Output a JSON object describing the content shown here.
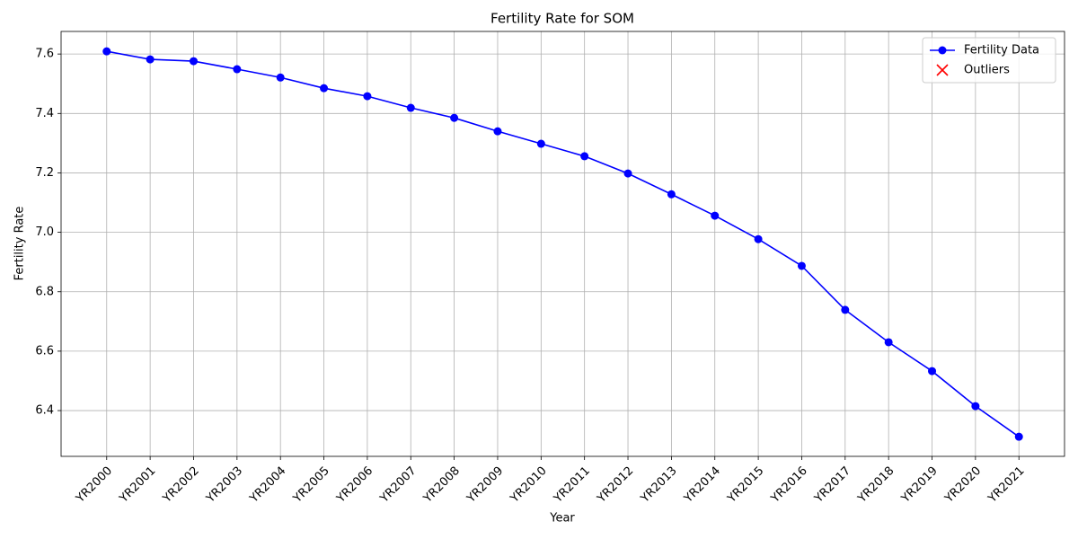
{
  "chart_data": {
    "type": "line",
    "title": "Fertility Rate for SOM",
    "x_label": "Year",
    "y_label": "Fertility Rate",
    "categories": [
      "YR2000",
      "YR2001",
      "YR2002",
      "YR2003",
      "YR2004",
      "YR2005",
      "YR2006",
      "YR2007",
      "YR2008",
      "YR2009",
      "YR2010",
      "YR2011",
      "YR2012",
      "YR2013",
      "YR2014",
      "YR2015",
      "YR2016",
      "YR2017",
      "YR2018",
      "YR2019",
      "YR2020",
      "YR2021"
    ],
    "series": [
      {
        "name": "Fertility Data",
        "color": "#0000ff",
        "marker": "o",
        "values": [
          7.609,
          7.582,
          7.576,
          7.549,
          7.521,
          7.485,
          7.458,
          7.419,
          7.385,
          7.34,
          7.298,
          7.256,
          7.198,
          7.128,
          7.056,
          6.977,
          6.887,
          6.739,
          6.63,
          6.533,
          6.415,
          6.312
        ]
      },
      {
        "name": "Outliers",
        "color": "#ff0000",
        "marker": "x",
        "values": [
          null,
          null,
          null,
          null,
          null,
          null,
          null,
          null,
          null,
          null,
          null,
          null,
          null,
          null,
          null,
          null,
          null,
          null,
          null,
          null,
          null,
          null
        ]
      }
    ],
    "ylim": [
      6.246,
      7.676
    ],
    "yticks": [
      6.4,
      6.6,
      6.8,
      {
        "value": 7,
        "label": "7.0"
      },
      7.2,
      7.4,
      7.6
    ],
    "grid": true,
    "legend": "upper right"
  }
}
